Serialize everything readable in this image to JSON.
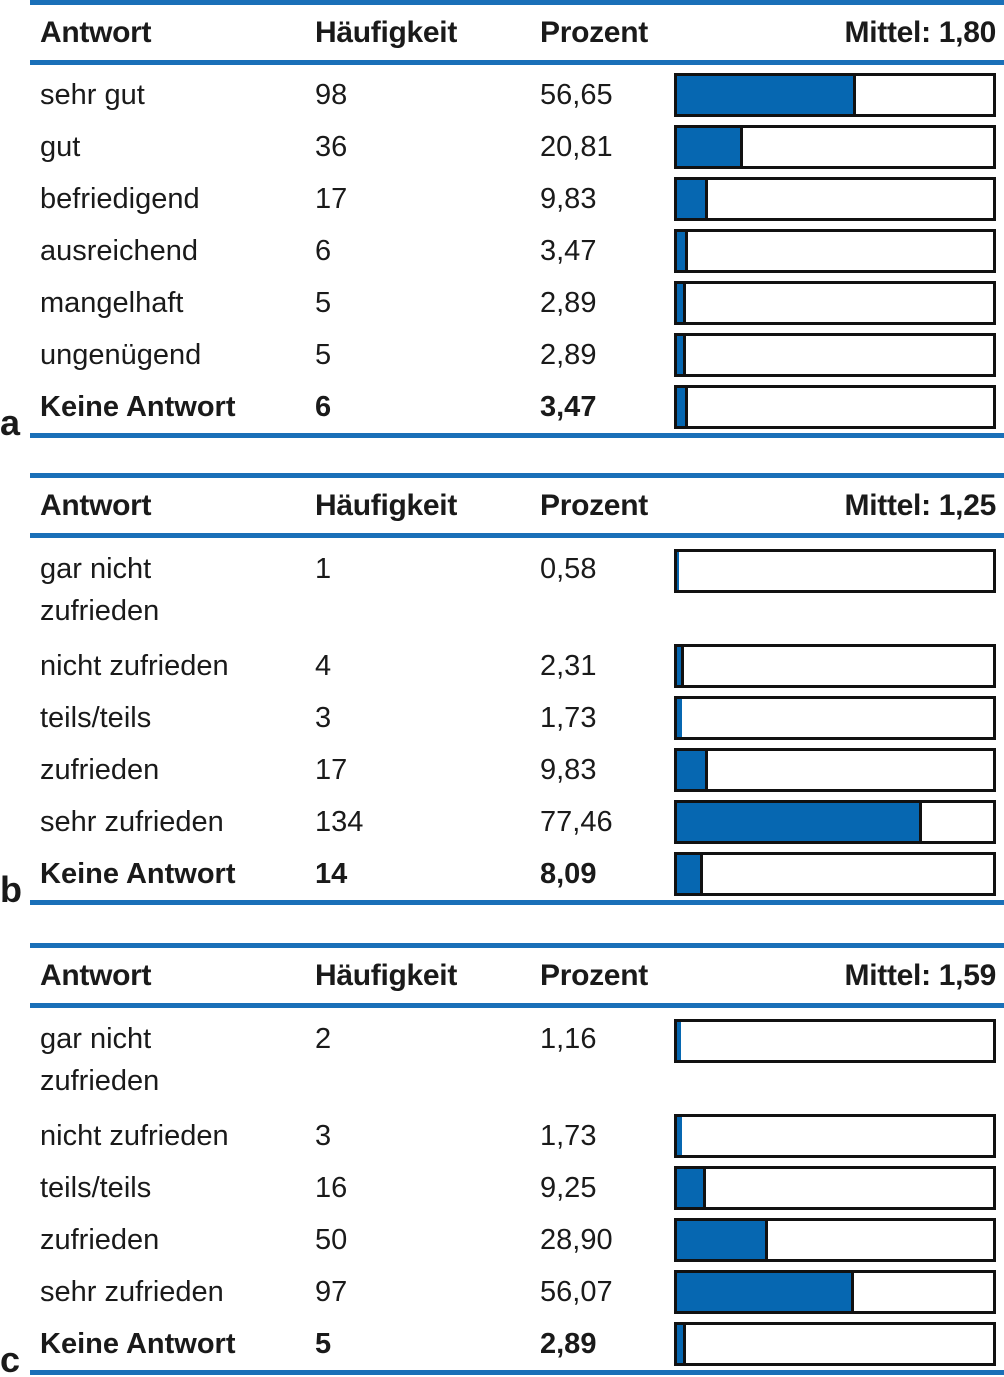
{
  "colors": {
    "rule": "#1a70b8",
    "bar_fill": "#0667b1",
    "bar_border": "#111111",
    "text": "#1a1a1a"
  },
  "tables": [
    {
      "label": "a",
      "header": {
        "answer": "Antwort",
        "frequency": "Häufigkeit",
        "percent": "Prozent",
        "mean": "Mittel: 1,80"
      },
      "rows": [
        {
          "answer": "sehr gut",
          "frequency": "98",
          "percent": "56,65",
          "pct": 56.65,
          "bold": false,
          "tall": false
        },
        {
          "answer": "gut",
          "frequency": "36",
          "percent": "20,81",
          "pct": 20.81,
          "bold": false,
          "tall": false
        },
        {
          "answer": "befriedigend",
          "frequency": "17",
          "percent": "9,83",
          "pct": 9.83,
          "bold": false,
          "tall": false
        },
        {
          "answer": "ausreichend",
          "frequency": "6",
          "percent": "3,47",
          "pct": 3.47,
          "bold": false,
          "tall": false
        },
        {
          "answer": "mangelhaft",
          "frequency": "5",
          "percent": "2,89",
          "pct": 2.89,
          "bold": false,
          "tall": false
        },
        {
          "answer": "ungenügend",
          "frequency": "5",
          "percent": "2,89",
          "pct": 2.89,
          "bold": false,
          "tall": false
        },
        {
          "answer": "Keine Antwort",
          "frequency": "6",
          "percent": "3,47",
          "pct": 3.47,
          "bold": true,
          "tall": false
        }
      ]
    },
    {
      "label": "b",
      "header": {
        "answer": "Antwort",
        "frequency": "Häufigkeit",
        "percent": "Prozent",
        "mean": "Mittel: 1,25"
      },
      "rows": [
        {
          "answer": "gar nicht\nzufrieden",
          "frequency": "1",
          "percent": "0,58",
          "pct": 0.58,
          "bold": false,
          "tall": true
        },
        {
          "answer": "nicht zufrieden",
          "frequency": "4",
          "percent": "2,31",
          "pct": 2.31,
          "bold": false,
          "tall": false
        },
        {
          "answer": "teils/teils",
          "frequency": "3",
          "percent": "1,73",
          "pct": 1.73,
          "bold": false,
          "tall": false
        },
        {
          "answer": "zufrieden",
          "frequency": "17",
          "percent": "9,83",
          "pct": 9.83,
          "bold": false,
          "tall": false
        },
        {
          "answer": "sehr zufrieden",
          "frequency": "134",
          "percent": "77,46",
          "pct": 77.46,
          "bold": false,
          "tall": false
        },
        {
          "answer": "Keine Antwort",
          "frequency": "14",
          "percent": "8,09",
          "pct": 8.09,
          "bold": true,
          "tall": false
        }
      ]
    },
    {
      "label": "c",
      "header": {
        "answer": "Antwort",
        "frequency": "Häufigkeit",
        "percent": "Prozent",
        "mean": "Mittel: 1,59"
      },
      "rows": [
        {
          "answer": "gar nicht\nzufrieden",
          "frequency": "2",
          "percent": "1,16",
          "pct": 1.16,
          "bold": false,
          "tall": true
        },
        {
          "answer": "nicht zufrieden",
          "frequency": "3",
          "percent": "1,73",
          "pct": 1.73,
          "bold": false,
          "tall": false
        },
        {
          "answer": "teils/teils",
          "frequency": "16",
          "percent": "9,25",
          "pct": 9.25,
          "bold": false,
          "tall": false
        },
        {
          "answer": "zufrieden",
          "frequency": "50",
          "percent": "28,90",
          "pct": 28.9,
          "bold": false,
          "tall": false
        },
        {
          "answer": "sehr zufrieden",
          "frequency": "97",
          "percent": "56,07",
          "pct": 56.07,
          "bold": false,
          "tall": false
        },
        {
          "answer": "Keine Antwort",
          "frequency": "5",
          "percent": "2,89",
          "pct": 2.89,
          "bold": true,
          "tall": false
        }
      ]
    }
  ],
  "chart_data": [
    {
      "type": "bar",
      "orientation": "horizontal",
      "title": "Mittel: 1,80",
      "mean": 1.8,
      "categories": [
        "sehr gut",
        "gut",
        "befriedigend",
        "ausreichend",
        "mangelhaft",
        "ungenügend",
        "Keine Antwort"
      ],
      "series": [
        {
          "name": "Häufigkeit",
          "values": [
            98,
            36,
            17,
            6,
            5,
            5,
            6
          ]
        },
        {
          "name": "Prozent",
          "values": [
            56.65,
            20.81,
            9.83,
            3.47,
            2.89,
            2.89,
            3.47
          ]
        }
      ],
      "bar_series": "Prozent",
      "xlim": [
        0,
        100
      ],
      "grid": false,
      "legend": "none",
      "column_headers": [
        "Antwort",
        "Häufigkeit",
        "Prozent"
      ]
    },
    {
      "type": "bar",
      "orientation": "horizontal",
      "title": "Mittel: 1,25",
      "mean": 1.25,
      "categories": [
        "gar nicht zufrieden",
        "nicht zufrieden",
        "teils/teils",
        "zufrieden",
        "sehr zufrieden",
        "Keine Antwort"
      ],
      "series": [
        {
          "name": "Häufigkeit",
          "values": [
            1,
            4,
            3,
            17,
            134,
            14
          ]
        },
        {
          "name": "Prozent",
          "values": [
            0.58,
            2.31,
            1.73,
            9.83,
            77.46,
            8.09
          ]
        }
      ],
      "bar_series": "Prozent",
      "xlim": [
        0,
        100
      ],
      "grid": false,
      "legend": "none",
      "column_headers": [
        "Antwort",
        "Häufigkeit",
        "Prozent"
      ]
    },
    {
      "type": "bar",
      "orientation": "horizontal",
      "title": "Mittel: 1,59",
      "mean": 1.59,
      "categories": [
        "gar nicht zufrieden",
        "nicht zufrieden",
        "teils/teils",
        "zufrieden",
        "sehr zufrieden",
        "Keine Antwort"
      ],
      "series": [
        {
          "name": "Häufigkeit",
          "values": [
            2,
            3,
            16,
            50,
            97,
            5
          ]
        },
        {
          "name": "Prozent",
          "values": [
            1.16,
            1.73,
            9.25,
            28.9,
            56.07,
            2.89
          ]
        }
      ],
      "bar_series": "Prozent",
      "xlim": [
        0,
        100
      ],
      "grid": false,
      "legend": "none",
      "column_headers": [
        "Antwort",
        "Häufigkeit",
        "Prozent"
      ]
    }
  ]
}
